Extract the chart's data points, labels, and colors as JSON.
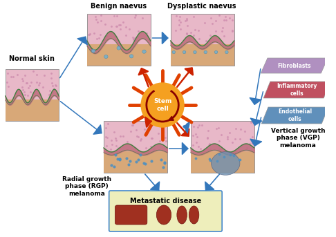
{
  "bg_color": "#ffffff",
  "labels": {
    "normal_skin": "Normal skin",
    "benign": "Benign naevus",
    "dysplastic": "Dysplastic naevus",
    "stem_cell": "Stem\ncell",
    "rgp": "Radial growth\nphase (RGP)\nmelanoma",
    "vgp": "Vertical growth\nphase (VGP)\nmelanoma",
    "metastatic": "Metastatic disease",
    "fibroblasts": "Fibroblasts",
    "inflammatory": "Inflammatory\ncells",
    "endothelial": "Endothelial\ncells"
  },
  "sun_color": "#f5a020",
  "sun_ray_color": "#e04000",
  "arrow_color_blue": "#3377bb",
  "arrow_color_red": "#cc2200",
  "fibroblasts_color": "#b090c0",
  "inflammatory_color": "#c05060",
  "endothelial_color": "#6090bb",
  "metastatic_box_color": "#eeeebb",
  "metastatic_box_edge": "#4488cc",
  "skin_pink_top": "#e8b0c0",
  "skin_pink_dots": "#d080a0",
  "skin_green": "#50a050",
  "skin_tan": "#d4a870",
  "skin_tan_light": "#e8c898",
  "skin_blue_cell": "#5090c8",
  "skin_invasion": "#5080a0"
}
